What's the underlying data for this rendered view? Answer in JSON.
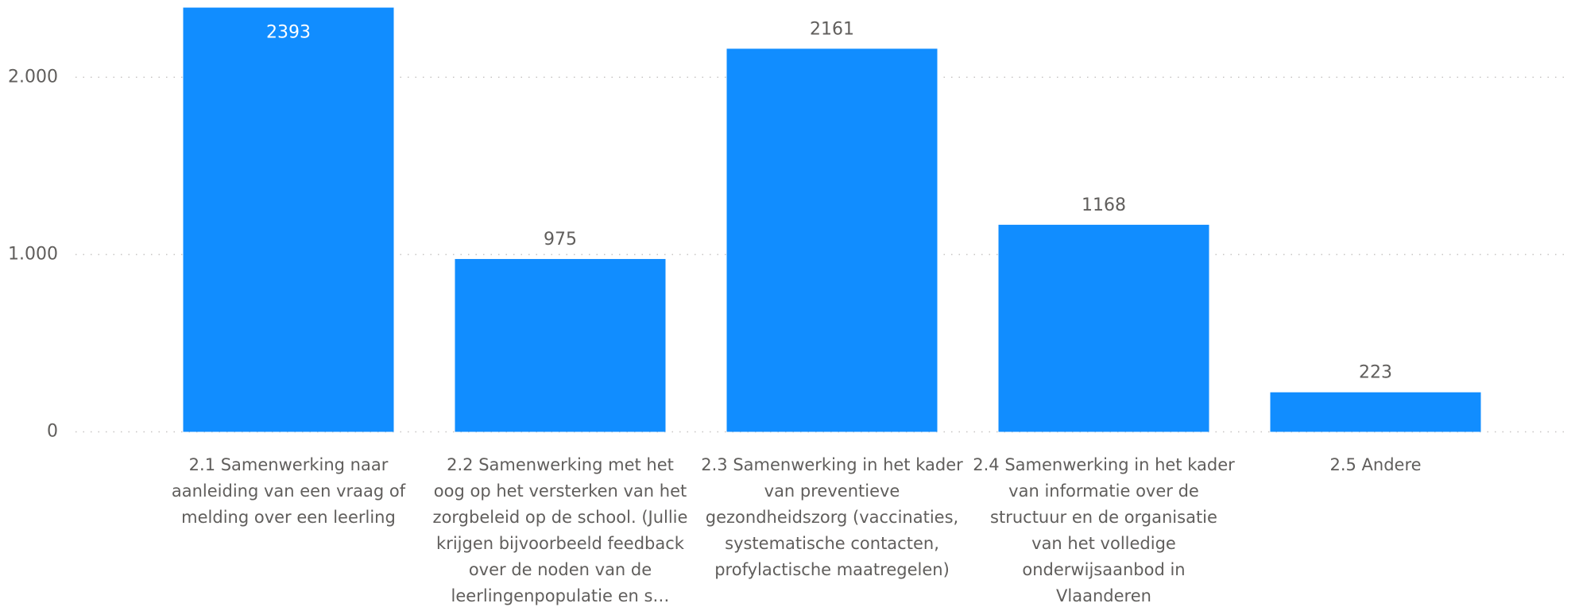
{
  "chart_data": {
    "type": "bar",
    "categories": [
      "2.1 Samenwerking naar aanleiding van een vraag of melding over een leerling",
      "2.2 Samenwerking met het oog op het versterken van het zorgbeleid op de school. (Jullie krijgen bijvoorbeeld feedback over de noden van de leerlingenpopulatie en s…",
      "2.3 Samenwerking in het kader van preventieve gezondheidszorg (vaccinaties, systematische contacten, profylactische maatregelen)",
      "2.4 Samenwerking in het kader van informatie over de structuur en de organisatie van het volledige onderwijsaanbod in Vlaanderen",
      "2.5 Andere"
    ],
    "values": [
      2393,
      975,
      2161,
      1168,
      223
    ],
    "color": "#118DFF",
    "ylim": [
      0,
      2400
    ],
    "yticks": [
      0,
      {
        "value": 1000,
        "label": "1.000"
      },
      {
        "value": 2000,
        "label": "2.000"
      }
    ],
    "grid": true
  }
}
